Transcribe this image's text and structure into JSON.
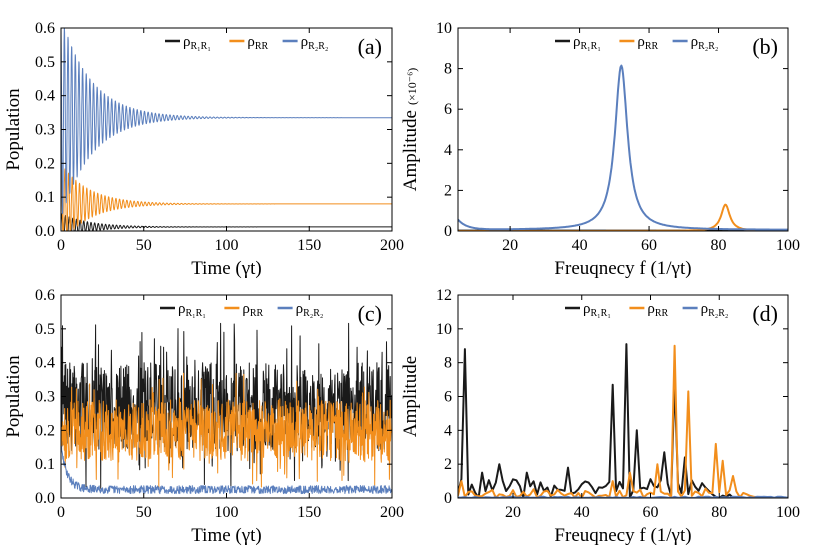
{
  "colors": {
    "black_series": "#1a1a1a",
    "orange_series": "#f28e1c",
    "blue_series": "#5b7fbd"
  },
  "chart_data": [
    {
      "panel_label": "(a)",
      "type": "line",
      "xlabel": "Time (γt)",
      "ylabel": "Population",
      "xlim": [
        0,
        200
      ],
      "ylim": [
        0,
        0.6
      ],
      "xticks": [
        0,
        50,
        100,
        150,
        200
      ],
      "yticks": [
        0.0,
        0.1,
        0.2,
        0.3,
        0.4,
        0.5,
        0.6
      ],
      "ytick_labels": [
        "0.0",
        "0.1",
        "0.2",
        "0.3",
        "0.4",
        "0.5",
        "0.6"
      ],
      "legend": "top-right",
      "series": [
        {
          "name": "ρR₁R₁",
          "color_key": "black_series",
          "steady": 0.012,
          "start_amp": 0.04,
          "decay": 0.06,
          "period": 2.2
        },
        {
          "name": "ρRR",
          "color_key": "orange_series",
          "steady": 0.08,
          "start_amp": 0.12,
          "decay": 0.06,
          "period": 2.2
        },
        {
          "name": "ρR₂R₂",
          "color_key": "blue_series",
          "steady": 0.335,
          "start_amp": 0.3,
          "decay": 0.055,
          "period": 2.2
        }
      ]
    },
    {
      "panel_label": "(b)",
      "type": "line",
      "xlabel": "Freuqnecy f (1/γt)",
      "ylabel": "Amplitude",
      "ylabel_unit": "(×10⁻⁶)",
      "xlim": [
        5,
        100
      ],
      "ylim": [
        0,
        10
      ],
      "xticks": [
        20,
        40,
        60,
        80,
        100
      ],
      "yticks": [
        0,
        2,
        4,
        6,
        8,
        10
      ],
      "ytick_labels": [
        "0",
        "2",
        "4",
        "6",
        "8",
        "10"
      ],
      "legend": "top-right",
      "series": [
        {
          "name": "ρR₁R₁",
          "color_key": "black_series",
          "peaks": [],
          "baseline": 0.02
        },
        {
          "name": "ρRR",
          "color_key": "orange_series",
          "peaks": [
            {
              "center": 82,
              "height": 1.3,
              "width": 1.5
            }
          ],
          "baseline": 0.0
        },
        {
          "name": "ρR₂R₂",
          "color_key": "blue_series",
          "peaks": [
            {
              "center": 52,
              "height": 8.1,
              "width": 2.2
            }
          ],
          "baseline": 0.05,
          "start_value": 0.5
        }
      ]
    },
    {
      "panel_label": "(c)",
      "type": "line",
      "xlabel": "Time (γt)",
      "ylabel": "Population",
      "xlim": [
        0,
        200
      ],
      "ylim": [
        0,
        0.6
      ],
      "xticks": [
        0,
        50,
        100,
        150,
        200
      ],
      "yticks": [
        0.0,
        0.1,
        0.2,
        0.3,
        0.4,
        0.5,
        0.6
      ],
      "ytick_labels": [
        "0.0",
        "0.1",
        "0.2",
        "0.3",
        "0.4",
        "0.5",
        "0.6"
      ],
      "legend": "top-right",
      "series": [
        {
          "name": "ρR₁R₁",
          "color_key": "black_series",
          "center": 0.27,
          "spread": 0.13,
          "seed": 7
        },
        {
          "name": "ρRR",
          "color_key": "orange_series",
          "center": 0.2,
          "spread": 0.09,
          "seed": 13
        },
        {
          "name": "ρR₂R₂",
          "color_key": "blue_series",
          "center": 0.025,
          "spread": 0.012,
          "seed": 29,
          "start_value": 0.15
        }
      ]
    },
    {
      "panel_label": "(d)",
      "type": "line",
      "xlabel": "Freuqnecy f (1/γt)",
      "ylabel": "Amplitude",
      "xlim": [
        4,
        100
      ],
      "ylim": [
        0,
        12
      ],
      "xticks": [
        20,
        40,
        60,
        80,
        100
      ],
      "yticks": [
        0,
        2,
        4,
        6,
        8,
        10,
        12
      ],
      "ytick_labels": [
        "0",
        "2",
        "4",
        "6",
        "8",
        "10",
        "12"
      ],
      "legend": "top-right",
      "series": [
        {
          "name": "ρR₁R₁",
          "color_key": "black_series",
          "peaks": [
            [
              6,
              8.8
            ],
            [
              11,
              1.5
            ],
            [
              16,
              2.0
            ],
            [
              24,
              1.5
            ],
            [
              36,
              1.8
            ],
            [
              49,
              6.7
            ],
            [
              53,
              9.1
            ],
            [
              56,
              4.0
            ],
            [
              64,
              2.7
            ],
            [
              67,
              6.9
            ],
            [
              70,
              2.4
            ]
          ],
          "seed": 41,
          "noise": 0.7,
          "fade_start": 72,
          "fade_end": 86
        },
        {
          "name": "ρRR",
          "color_key": "orange_series",
          "peaks": [
            [
              5,
              1.0
            ],
            [
              49,
              1.0
            ],
            [
              54,
              1.5
            ],
            [
              62,
              2.0
            ],
            [
              67,
              9.0
            ],
            [
              71,
              6.3
            ],
            [
              79,
              3.2
            ],
            [
              81,
              2.2
            ],
            [
              84,
              1.3
            ]
          ],
          "seed": 53,
          "noise": 0.35,
          "fade_start": 85,
          "fade_end": 92
        },
        {
          "name": "ρR₂R₂",
          "color_key": "blue_series",
          "peaks": [],
          "seed": 67,
          "noise": 0.05,
          "fade_start": 100,
          "fade_end": 101
        }
      ]
    }
  ]
}
